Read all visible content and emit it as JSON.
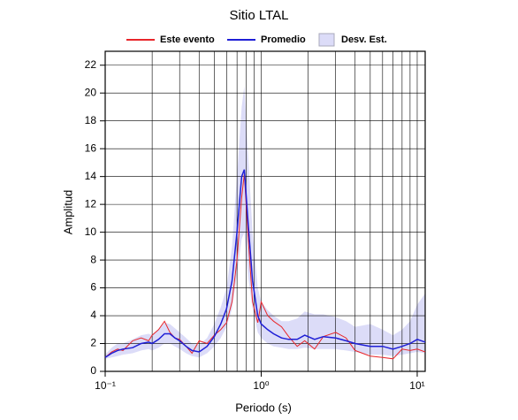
{
  "chart_data": {
    "type": "line",
    "title": "Sitio LTAL",
    "xlabel": "Periodo (s)",
    "ylabel": "Amplitud",
    "log_x": true,
    "grid": true,
    "xlim": [
      0.1,
      11.25
    ],
    "ylim": [
      0,
      23
    ],
    "xticks": [
      {
        "value": 0.1,
        "label": "10⁻¹"
      },
      {
        "value": 1,
        "label": "10⁰"
      },
      {
        "value": 10,
        "label": "10¹"
      }
    ],
    "yticks": [
      0,
      2,
      4,
      6,
      8,
      10,
      12,
      14,
      16,
      18,
      20,
      22
    ],
    "x": [
      0.1,
      0.11,
      0.12,
      0.13,
      0.15,
      0.17,
      0.19,
      0.2,
      0.22,
      0.24,
      0.26,
      0.28,
      0.3,
      0.33,
      0.36,
      0.4,
      0.45,
      0.5,
      0.55,
      0.6,
      0.65,
      0.7,
      0.75,
      0.78,
      0.82,
      0.88,
      0.95,
      1.0,
      1.1,
      1.2,
      1.35,
      1.5,
      1.7,
      1.9,
      2.2,
      2.5,
      3.0,
      3.5,
      4.0,
      5.0,
      6.0,
      7.0,
      8.0,
      9.0,
      10,
      11.25
    ],
    "series": [
      {
        "name": "Este evento",
        "color": "#e8262a",
        "values": [
          1.0,
          1.4,
          1.6,
          1.5,
          2.2,
          2.4,
          2.2,
          2.6,
          3.0,
          3.6,
          2.8,
          2.4,
          2.3,
          1.8,
          1.3,
          2.2,
          2.0,
          2.6,
          3.0,
          3.5,
          5,
          8,
          12.5,
          14.2,
          10,
          5,
          3.5,
          5.0,
          4.0,
          3.6,
          3.2,
          2.5,
          1.8,
          2.2,
          1.6,
          2.5,
          2.8,
          2.4,
          1.5,
          1.1,
          1.0,
          0.9,
          1.6,
          1.5,
          1.6,
          1.4
        ]
      },
      {
        "name": "Promedio",
        "color": "#1f1fd6",
        "values": [
          1.0,
          1.3,
          1.5,
          1.6,
          1.7,
          2.0,
          2.1,
          2.0,
          2.3,
          2.7,
          2.7,
          2.4,
          2.2,
          1.8,
          1.5,
          1.4,
          1.8,
          2.5,
          3.4,
          4.5,
          6.5,
          10,
          14.0,
          14.5,
          11,
          6.5,
          4.0,
          3.4,
          3.0,
          2.7,
          2.4,
          2.3,
          2.3,
          2.6,
          2.3,
          2.5,
          2.4,
          2.2,
          2.0,
          1.8,
          1.8,
          1.6,
          1.8,
          2.0,
          2.3,
          2.1
        ]
      }
    ],
    "band": {
      "name": "Desv. Est.",
      "color": "#dcdcf8",
      "lower": [
        0.9,
        1.0,
        1.1,
        1.2,
        1.3,
        1.5,
        1.6,
        1.5,
        1.7,
        2.0,
        2.0,
        1.8,
        1.6,
        1.3,
        1.1,
        1.0,
        1.3,
        1.8,
        2.4,
        3.2,
        4.5,
        7,
        9.5,
        10,
        7,
        4.5,
        2.8,
        2.4,
        2.0,
        1.8,
        1.7,
        1.6,
        1.6,
        1.7,
        1.6,
        1.6,
        1.6,
        1.5,
        1.4,
        1.2,
        1.2,
        1.1,
        1.2,
        1.3,
        1.4,
        1.3
      ],
      "upper": [
        1.2,
        1.7,
        2.0,
        2.0,
        2.3,
        2.6,
        2.7,
        2.6,
        3.0,
        3.5,
        3.4,
        3.1,
        2.8,
        2.4,
        2.0,
        1.9,
        2.4,
        3.4,
        4.6,
        6.0,
        9,
        14,
        19,
        20.5,
        16,
        10,
        6.0,
        5.0,
        4.4,
        4.0,
        3.6,
        3.6,
        3.8,
        4.3,
        4.1,
        4.1,
        3.9,
        3.6,
        3.2,
        3.4,
        3.0,
        2.6,
        3.0,
        3.6,
        4.8,
        5.6
      ]
    }
  }
}
